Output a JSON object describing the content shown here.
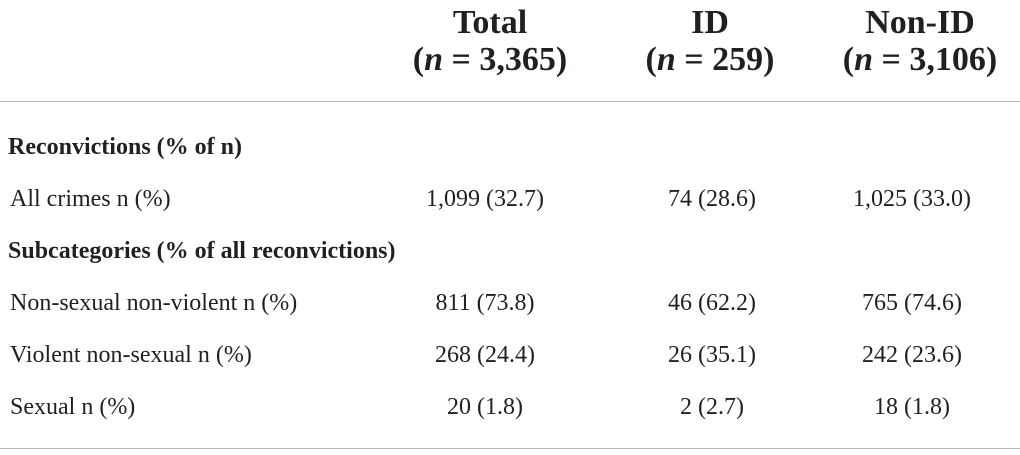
{
  "columns": [
    {
      "name": "Total",
      "n_label": "n",
      "n_value": " = 3,365"
    },
    {
      "name": "ID",
      "n_label": "n",
      "n_value": " = 259"
    },
    {
      "name": "Non-ID",
      "n_label": "n",
      "n_value": " = 3,106"
    }
  ],
  "sections": {
    "reconvictions": "Reconvictions (% of n)",
    "subcategories": "Subcategories (% of all reconvictions)"
  },
  "rows": [
    {
      "label": "All crimes n (%)",
      "values": [
        "1,099 (32.7)",
        "74 (28.6)",
        "1,025 (33.0)"
      ]
    },
    {
      "label": "Non-sexual non-violent n (%)",
      "values": [
        "811 (73.8)",
        "46 (62.2)",
        "765 (74.6)"
      ]
    },
    {
      "label": "Violent non-sexual n (%)",
      "values": [
        "268 (24.4)",
        "26 (35.1)",
        "242 (23.6)"
      ]
    },
    {
      "label": "Sexual n (%)",
      "values": [
        "20 (1.8)",
        "2 (2.7)",
        "18 (1.8)"
      ]
    }
  ]
}
